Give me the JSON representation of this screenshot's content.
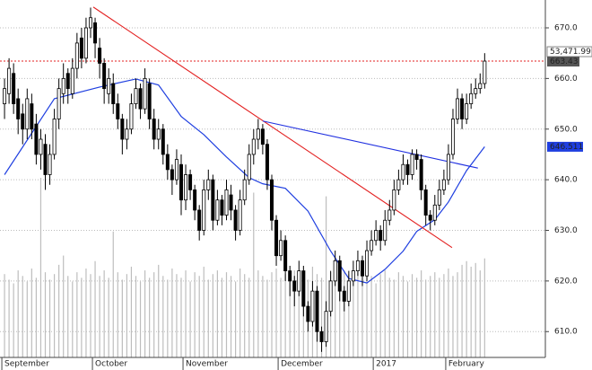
{
  "chart_data": {
    "type": "candlestick",
    "xlim": [
      -1,
      119.4
    ],
    "ylim": [
      604.9,
      675.5
    ],
    "yticks": [
      {
        "value": 610,
        "label": "610.0"
      },
      {
        "value": 620,
        "label": "620.0"
      },
      {
        "value": 630,
        "label": "630.0"
      },
      {
        "value": 640,
        "label": "640.0"
      },
      {
        "value": 650,
        "label": "650.0"
      },
      {
        "value": 660,
        "label": "660.0"
      },
      {
        "value": 670,
        "label": "670.0"
      }
    ],
    "xticks": [
      {
        "value": 0,
        "label": "September"
      },
      {
        "value": 20,
        "label": "October"
      },
      {
        "value": 40,
        "label": "November"
      },
      {
        "value": 61,
        "label": "December"
      },
      {
        "value": 82,
        "label": "2017"
      },
      {
        "value": 98,
        "label": "February"
      }
    ],
    "grid": true,
    "candles": [
      [
        655,
        660,
        652,
        658
      ],
      [
        657,
        664,
        655,
        662
      ],
      [
        661,
        663,
        653,
        655
      ],
      [
        656,
        658,
        649,
        652
      ],
      [
        653,
        655,
        647,
        650
      ],
      [
        650,
        658,
        648,
        656
      ],
      [
        655,
        657,
        648,
        650
      ],
      [
        651,
        653,
        643,
        645
      ],
      [
        645,
        650,
        642,
        648
      ],
      [
        647,
        649,
        638,
        641
      ],
      [
        641,
        647,
        639,
        645
      ],
      [
        645,
        654,
        644,
        652
      ],
      [
        652,
        660,
        650,
        658
      ],
      [
        657,
        663,
        655,
        660
      ],
      [
        661,
        662,
        655,
        658
      ],
      [
        657,
        664,
        656,
        662
      ],
      [
        662,
        669,
        660,
        667
      ],
      [
        668,
        670,
        662,
        664
      ],
      [
        664,
        672,
        663,
        670
      ],
      [
        670,
        674,
        668,
        672
      ],
      [
        671,
        672,
        664,
        667
      ],
      [
        666,
        668,
        660,
        663
      ],
      [
        663,
        664,
        655,
        658
      ],
      [
        657,
        662,
        655,
        660
      ],
      [
        659,
        661,
        653,
        655
      ],
      [
        655,
        657,
        650,
        652
      ],
      [
        652,
        653,
        645,
        648
      ],
      [
        648,
        652,
        646,
        650
      ],
      [
        650,
        657,
        649,
        655
      ],
      [
        655,
        660,
        654,
        658
      ],
      [
        658,
        659,
        652,
        654
      ],
      [
        654,
        662,
        653,
        660
      ],
      [
        659,
        660,
        650,
        652
      ],
      [
        652,
        654,
        646,
        648
      ],
      [
        648,
        652,
        646,
        650
      ],
      [
        650,
        651,
        643,
        645
      ],
      [
        645,
        647,
        640,
        642
      ],
      [
        642,
        643,
        637,
        640
      ],
      [
        640,
        646,
        639,
        644
      ],
      [
        643,
        645,
        633,
        636
      ],
      [
        636,
        643,
        634,
        641
      ],
      [
        641,
        642,
        636,
        638
      ],
      [
        638,
        639,
        632,
        634
      ],
      [
        634,
        635,
        628,
        630
      ],
      [
        630,
        640,
        629,
        638
      ],
      [
        638,
        642,
        636,
        640
      ],
      [
        640,
        641,
        630,
        632
      ],
      [
        632,
        638,
        631,
        636
      ],
      [
        636,
        637,
        631,
        633
      ],
      [
        633,
        640,
        632,
        638
      ],
      [
        637,
        639,
        632,
        634
      ],
      [
        634,
        635,
        628,
        630
      ],
      [
        630,
        638,
        629,
        636
      ],
      [
        636,
        642,
        635,
        640
      ],
      [
        640,
        647,
        639,
        645
      ],
      [
        645,
        650,
        643,
        648
      ],
      [
        648,
        652,
        646,
        650
      ],
      [
        650,
        651,
        645,
        647
      ],
      [
        647,
        648,
        638,
        640
      ],
      [
        640,
        641,
        630,
        632
      ],
      [
        632,
        633,
        623,
        625
      ],
      [
        625,
        630,
        624,
        628
      ],
      [
        628,
        629,
        620,
        622
      ],
      [
        622,
        623,
        617,
        620
      ],
      [
        620,
        621,
        615,
        618
      ],
      [
        618,
        624,
        617,
        622
      ],
      [
        622,
        623,
        613,
        615
      ],
      [
        615,
        616,
        610,
        612
      ],
      [
        612,
        620,
        611,
        618
      ],
      [
        618,
        619,
        608,
        610
      ],
      [
        610,
        611,
        606,
        608
      ],
      [
        608,
        616,
        607,
        614
      ],
      [
        614,
        622,
        613,
        620
      ],
      [
        620,
        626,
        619,
        624
      ],
      [
        624,
        625,
        616,
        618
      ],
      [
        618,
        619,
        614,
        616
      ],
      [
        616,
        622,
        615,
        620
      ],
      [
        620,
        624,
        619,
        622
      ],
      [
        622,
        626,
        621,
        624
      ],
      [
        624,
        625,
        619,
        621
      ],
      [
        621,
        628,
        620,
        626
      ],
      [
        626,
        630,
        625,
        628
      ],
      [
        628,
        632,
        627,
        630
      ],
      [
        630,
        631,
        626,
        628
      ],
      [
        628,
        634,
        627,
        632
      ],
      [
        632,
        636,
        631,
        634
      ],
      [
        634,
        640,
        633,
        638
      ],
      [
        638,
        642,
        637,
        640
      ],
      [
        640,
        645,
        639,
        643
      ],
      [
        643,
        644,
        639,
        641
      ],
      [
        641,
        646,
        640,
        645
      ],
      [
        645,
        646,
        642,
        644
      ],
      [
        644,
        645,
        636,
        638
      ],
      [
        638,
        639,
        631,
        633
      ],
      [
        633,
        634,
        630,
        632
      ],
      [
        632,
        637,
        631,
        635
      ],
      [
        635,
        640,
        634,
        638
      ],
      [
        638,
        642,
        637,
        640
      ],
      [
        640,
        647,
        639,
        645
      ],
      [
        645,
        654,
        644,
        652
      ],
      [
        652,
        658,
        651,
        656
      ],
      [
        656,
        657,
        650,
        652
      ],
      [
        652,
        657,
        651,
        655
      ],
      [
        655,
        659,
        654,
        657
      ],
      [
        657,
        660,
        656,
        658
      ],
      [
        658,
        661,
        657,
        659
      ],
      [
        659,
        665,
        658,
        663.43
      ]
    ],
    "volume_lim": [
      0,
      193000
    ],
    "volume": [
      45000,
      42000,
      40000,
      47000,
      44000,
      41000,
      48000,
      43000,
      97000,
      46000,
      42000,
      45000,
      50000,
      55000,
      44000,
      41000,
      46000,
      43000,
      48000,
      45000,
      52000,
      44000,
      47000,
      43000,
      68000,
      46000,
      42000,
      45000,
      49000,
      44000,
      41000,
      47000,
      43000,
      46000,
      50000,
      44000,
      42000,
      48000,
      45000,
      43000,
      47000,
      41000,
      46000,
      44000,
      49000,
      42000,
      45000,
      47000,
      43000,
      46000,
      44000,
      41000,
      48000,
      45000,
      43000,
      89000,
      47000,
      44000,
      42000,
      46000,
      48000,
      43000,
      45000,
      41000,
      47000,
      44000,
      46000,
      42000,
      49000,
      45000,
      43000,
      87000,
      46000,
      44000,
      42000,
      47000,
      45000,
      43000,
      46000,
      41000,
      48000,
      44000,
      40000,
      45000,
      47000,
      43000,
      42000,
      46000,
      44000,
      41000,
      45000,
      43000,
      47000,
      42000,
      44000,
      46000,
      43000,
      45000,
      48000,
      44000,
      46000,
      50000,
      52000,
      49000,
      51000,
      47000,
      53471.99
    ],
    "volume_label": {
      "value": 53471.99,
      "label": "53,471.99"
    },
    "price_label": 663.43,
    "ma": {
      "color": "#1f3fe0",
      "x": [
        0,
        11,
        21,
        29,
        34,
        39,
        44,
        49,
        54,
        57,
        62,
        67,
        72,
        76,
        80,
        84,
        88,
        91,
        95,
        98,
        102,
        106
      ],
      "values": [
        641,
        656,
        658.3,
        659.9,
        658.7,
        652.5,
        648.9,
        644.5,
        640.4,
        639.2,
        638.3,
        633.8,
        625.9,
        620.5,
        619.6,
        622.3,
        625.9,
        629.8,
        632.1,
        635.6,
        641.8,
        646.511
      ]
    },
    "ma_label": 646.511,
    "trendlines": [
      {
        "color": "#e32020",
        "x": [
          19.6,
          98.8
        ],
        "values": [
          674.1,
          626.6
        ]
      },
      {
        "color": "#2030e0",
        "x": [
          57,
          104.5
        ],
        "values": [
          651.6,
          642.3
        ]
      }
    ],
    "hline_color": "#e32020"
  }
}
